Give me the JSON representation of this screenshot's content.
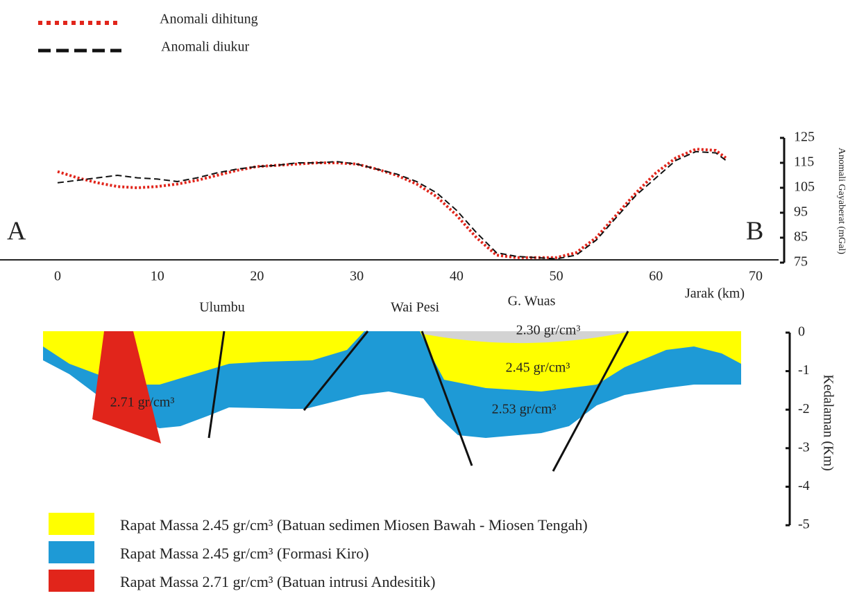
{
  "chart_data": [
    {
      "type": "line",
      "profile_ends": [
        "A",
        "B"
      ],
      "xlabel": "Jarak (km)",
      "ylabel": "Anomali Gayaberat (mGal)",
      "x": [
        0,
        2,
        4,
        6,
        8,
        10,
        12,
        14,
        16,
        18,
        20,
        22,
        24,
        26,
        28,
        30,
        32,
        34,
        36,
        38,
        40,
        42,
        44,
        46,
        48,
        50,
        52,
        54,
        56,
        58,
        60,
        62,
        64,
        66,
        67
      ],
      "series": [
        {
          "name": "Anomali dihitung",
          "color": "#e1251b",
          "linestyle": "dotted",
          "values": [
            111.5,
            109,
            107,
            105.5,
            105,
            105.5,
            106.5,
            108,
            110,
            112,
            113.5,
            114,
            114.5,
            115,
            115,
            114.5,
            112.5,
            110,
            106.5,
            101.5,
            94,
            85,
            78,
            77,
            77,
            77,
            79,
            85,
            94,
            103,
            111,
            117,
            120.5,
            120,
            117
          ]
        },
        {
          "name": "Anomali diukur",
          "color": "#111111",
          "linestyle": "dashed",
          "values": [
            107,
            108,
            109,
            110,
            109,
            108.5,
            107.5,
            109,
            111,
            112.5,
            113.5,
            114,
            115,
            115,
            115.5,
            114.5,
            112.5,
            110.5,
            107.5,
            103,
            96,
            87,
            79,
            77.5,
            77,
            76.5,
            78,
            84,
            93,
            102,
            109,
            116,
            119.5,
            119,
            116
          ]
        }
      ],
      "xlim": [
        0,
        70
      ],
      "xticks": [
        0,
        10,
        20,
        30,
        40,
        50,
        60,
        70
      ],
      "ylim": [
        75,
        125
      ],
      "yticks": [
        75,
        85,
        95,
        105,
        115,
        125
      ]
    },
    {
      "type": "cross-section",
      "ylabel": "Kedalaman (Km)",
      "ylim": [
        -5,
        0
      ],
      "yticks": [
        0,
        -1,
        -2,
        -3,
        -4,
        -5
      ],
      "places": [
        "Ulumbu",
        "Wai Pesi",
        "G. Wuas"
      ],
      "annotations": [
        "2.30 gr/cm³",
        "2.45 gr/cm³",
        "2.71 gr/cm³",
        "2.53 gr/cm³"
      ],
      "legend": [
        {
          "label": "Rapat Massa 2.45 gr/cm³ (Batuan sedimen Miosen Bawah - Miosen Tengah)",
          "color": "#ffff00"
        },
        {
          "label": "Rapat Massa 2.45 gr/cm³ (Formasi Kiro)",
          "color": "#1e9ad6"
        },
        {
          "label": "Rapat Massa 2.71 gr/cm³ (Batuan intrusi Andesitik)",
          "color": "#e1251b"
        }
      ]
    }
  ]
}
